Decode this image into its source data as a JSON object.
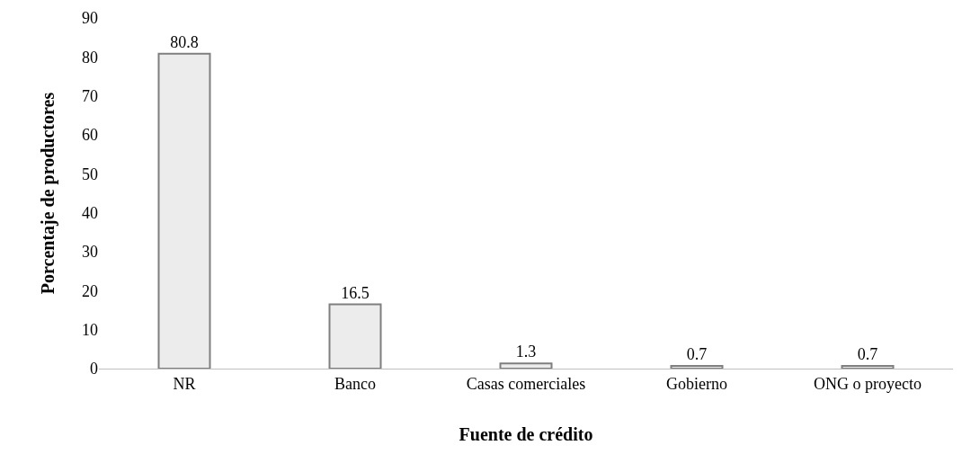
{
  "chart_data": {
    "type": "bar",
    "xlabel": "Fuente de crédito",
    "ylabel": "Porcentaje de productores",
    "categories": [
      "NR",
      "Banco",
      "Casas comerciales",
      "Gobierno",
      "ONG o proyecto"
    ],
    "values": [
      80.8,
      16.5,
      1.3,
      0.7,
      0.7
    ],
    "color": "#ececec",
    "ylim": [
      0,
      90
    ],
    "yticks": [
      0,
      10,
      20,
      30,
      40,
      50,
      60,
      70,
      80,
      90
    ],
    "grid": false,
    "data_labels": true
  }
}
